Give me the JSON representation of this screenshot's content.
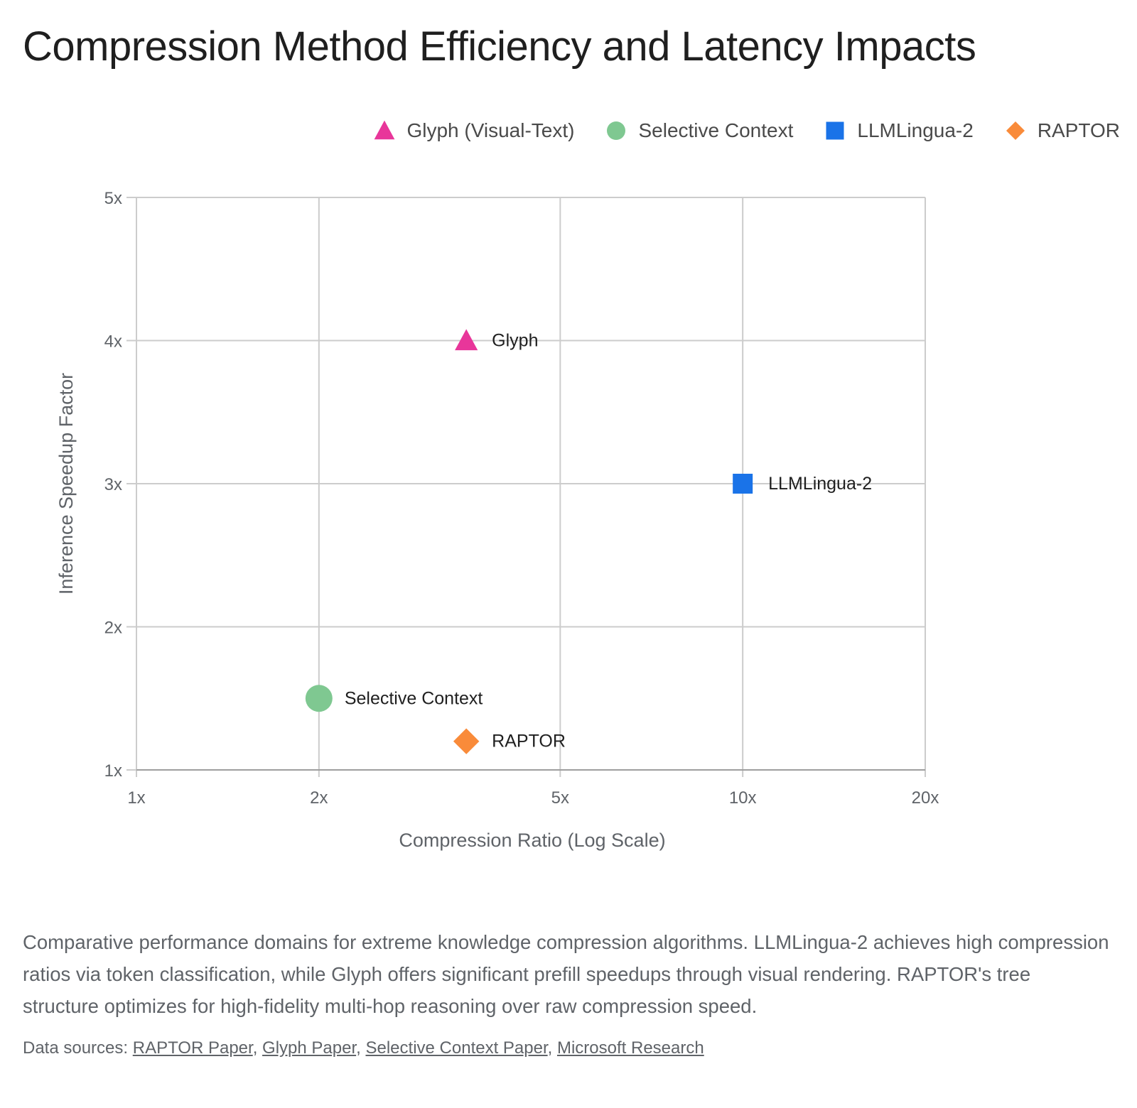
{
  "title": "Compression Method Efficiency and Latency Impacts",
  "legend": [
    {
      "name": "Glyph (Visual-Text)",
      "shape": "triangle",
      "color": "#E8369A"
    },
    {
      "name": "Selective Context",
      "shape": "circle",
      "color": "#7FC891"
    },
    {
      "name": "LLMLingua-2",
      "shape": "square",
      "color": "#1A73E8"
    },
    {
      "name": "RAPTOR",
      "shape": "diamond",
      "color": "#F98B3A"
    }
  ],
  "chart_data": {
    "type": "scatter",
    "xlabel": "Compression Ratio (Log Scale)",
    "ylabel": "Inference Speedup Factor",
    "x_scale": "log",
    "xlim": [
      1,
      20
    ],
    "ylim": [
      1,
      5
    ],
    "x_ticks": [
      {
        "value": 1,
        "label": "1x"
      },
      {
        "value": 2,
        "label": "2x"
      },
      {
        "value": 5,
        "label": "5x"
      },
      {
        "value": 10,
        "label": "10x"
      },
      {
        "value": 20,
        "label": "20x"
      }
    ],
    "y_ticks": [
      {
        "value": 1,
        "label": "1x"
      },
      {
        "value": 2,
        "label": "2x"
      },
      {
        "value": 3,
        "label": "3x"
      },
      {
        "value": 4,
        "label": "4x"
      },
      {
        "value": 5,
        "label": "5x"
      }
    ],
    "grid": true,
    "legend_position": "top-right",
    "points": [
      {
        "series": "Glyph (Visual-Text)",
        "label": "Glyph",
        "x": 3.5,
        "y": 4.0,
        "shape": "triangle",
        "color": "#E8369A"
      },
      {
        "series": "LLMLingua-2",
        "label": "LLMLingua-2",
        "x": 10,
        "y": 3.0,
        "shape": "square",
        "color": "#1A73E8"
      },
      {
        "series": "Selective Context",
        "label": "Selective Context",
        "x": 2,
        "y": 1.5,
        "shape": "circle",
        "color": "#7FC891"
      },
      {
        "series": "RAPTOR",
        "label": "RAPTOR",
        "x": 3.5,
        "y": 1.2,
        "shape": "diamond",
        "color": "#F98B3A"
      }
    ]
  },
  "caption": "Comparative performance domains for extreme knowledge compression algorithms. LLMLingua-2 achieves high compression ratios via token classification, while Glyph offers significant prefill speedups through visual rendering. RAPTOR's tree structure optimizes for high-fidelity multi-hop reasoning over raw compression speed.",
  "sources": {
    "prefix": "Data sources: ",
    "separator": ", ",
    "links": [
      "RAPTOR Paper",
      "Glyph Paper",
      "Selective Context Paper",
      "Microsoft Research"
    ]
  }
}
